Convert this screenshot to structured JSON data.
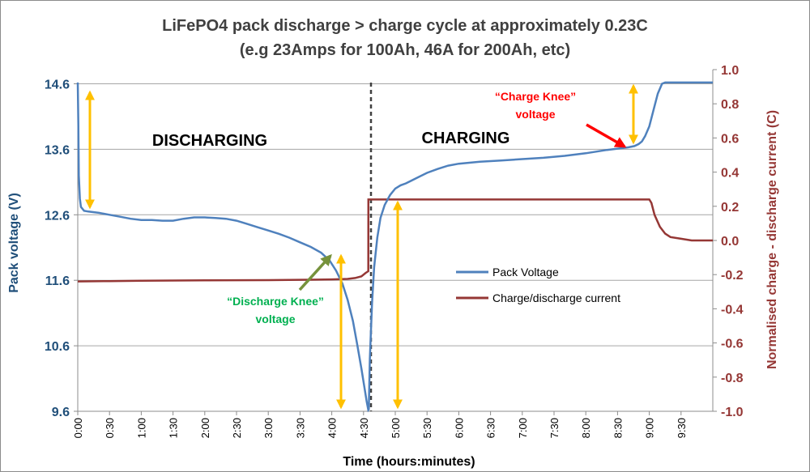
{
  "chart_data": {
    "type": "line",
    "title_line1": "LiFePO4 pack discharge > charge cycle at approximately 0.23C",
    "title_line2": "(e.g 23Amps for 100Ah, 46A for 200Ah, etc)",
    "xlabel": "Time (hours:minutes)",
    "ylabel_left": "Pack voltage (V)",
    "ylabel_right": "Normalised charge - discharge current (C)",
    "x_range_minutes": [
      0,
      600
    ],
    "ylim_left": [
      9.6,
      14.6
    ],
    "ylim_right": [
      -1.0,
      1.0
    ],
    "x_ticks": [
      "0:00",
      "0:30",
      "1:00",
      "1:30",
      "2:00",
      "2:30",
      "3:00",
      "3:30",
      "4:00",
      "4:30",
      "5:00",
      "5:30",
      "6:00",
      "6:30",
      "7:00",
      "7:30",
      "8:00",
      "8:30",
      "9:00",
      "9:30"
    ],
    "y_ticks_left": [
      "9.6",
      "10.6",
      "11.6",
      "12.6",
      "13.6",
      "14.6"
    ],
    "y_ticks_right": [
      "-1.0",
      "-0.8",
      "-0.6",
      "-0.4",
      "-0.2",
      "0.0",
      "0.2",
      "0.4",
      "0.6",
      "0.8",
      "1.0"
    ],
    "grid": "horizontal",
    "legend_position": "right-middle",
    "colors": {
      "voltage": "#4f81bd",
      "current": "#953735",
      "arrow": "#ffc000",
      "title": "#404040",
      "left_axis": "#1f4e79",
      "right_axis": "#953735",
      "discharge_knee": "#00b050",
      "charge_knee": "#ff0000",
      "knee_pointer_green": "#76923c",
      "knee_pointer_red": "#ff0000"
    },
    "series": [
      {
        "name": "Pack Voltage",
        "axis": "left",
        "x_minutes": [
          0,
          0.5,
          1,
          2,
          3,
          6,
          10,
          20,
          30,
          40,
          50,
          60,
          70,
          80,
          90,
          100,
          110,
          120,
          130,
          140,
          150,
          160,
          170,
          180,
          190,
          200,
          210,
          220,
          230,
          238,
          244,
          250,
          255,
          260,
          264,
          268,
          271,
          273,
          274.5,
          275,
          276,
          278,
          280,
          283,
          286,
          290,
          295,
          300,
          305,
          310,
          320,
          330,
          340,
          350,
          360,
          380,
          400,
          420,
          440,
          460,
          480,
          500,
          510,
          520,
          526,
          530,
          533,
          536,
          540,
          544,
          548,
          552,
          555,
          560,
          580,
          600
        ],
        "y_volts": [
          14.62,
          14.0,
          13.2,
          12.85,
          12.72,
          12.66,
          12.65,
          12.63,
          12.6,
          12.57,
          12.54,
          12.52,
          12.52,
          12.51,
          12.51,
          12.54,
          12.56,
          12.56,
          12.55,
          12.54,
          12.51,
          12.46,
          12.41,
          12.36,
          12.31,
          12.25,
          12.18,
          12.11,
          12.02,
          11.9,
          11.75,
          11.55,
          11.3,
          10.98,
          10.62,
          10.25,
          9.95,
          9.75,
          9.62,
          9.63,
          10.4,
          11.25,
          11.8,
          12.25,
          12.55,
          12.75,
          12.9,
          13.0,
          13.05,
          13.08,
          13.16,
          13.24,
          13.3,
          13.35,
          13.38,
          13.41,
          13.43,
          13.45,
          13.47,
          13.5,
          13.54,
          13.59,
          13.61,
          13.63,
          13.65,
          13.68,
          13.72,
          13.8,
          13.95,
          14.2,
          14.45,
          14.6,
          14.62,
          14.62,
          14.62,
          14.62
        ]
      },
      {
        "name": "Charge/discharge current",
        "axis": "right",
        "x_minutes": [
          0,
          30,
          60,
          120,
          180,
          220,
          240,
          255,
          262,
          268,
          272,
          274.5,
          274.6,
          540,
          542,
          545,
          550,
          555,
          560,
          570,
          580,
          600
        ],
        "y_c": [
          -0.24,
          -0.238,
          -0.236,
          -0.233,
          -0.232,
          -0.23,
          -0.228,
          -0.225,
          -0.22,
          -0.21,
          -0.19,
          -0.18,
          0.24,
          0.24,
          0.22,
          0.15,
          0.08,
          0.04,
          0.02,
          0.01,
          0.0,
          0.0
        ]
      }
    ],
    "annotations": {
      "discharging_label": "DISCHARGING",
      "charging_label": "CHARGING",
      "discharge_knee_line1": "“Discharge Knee”",
      "discharge_knee_line2": "voltage",
      "charge_knee_line1": "“Charge Knee”",
      "charge_knee_line2": "voltage"
    },
    "legend": {
      "voltage_label": "Pack Voltage",
      "current_label": "Charge/discharge current"
    }
  }
}
